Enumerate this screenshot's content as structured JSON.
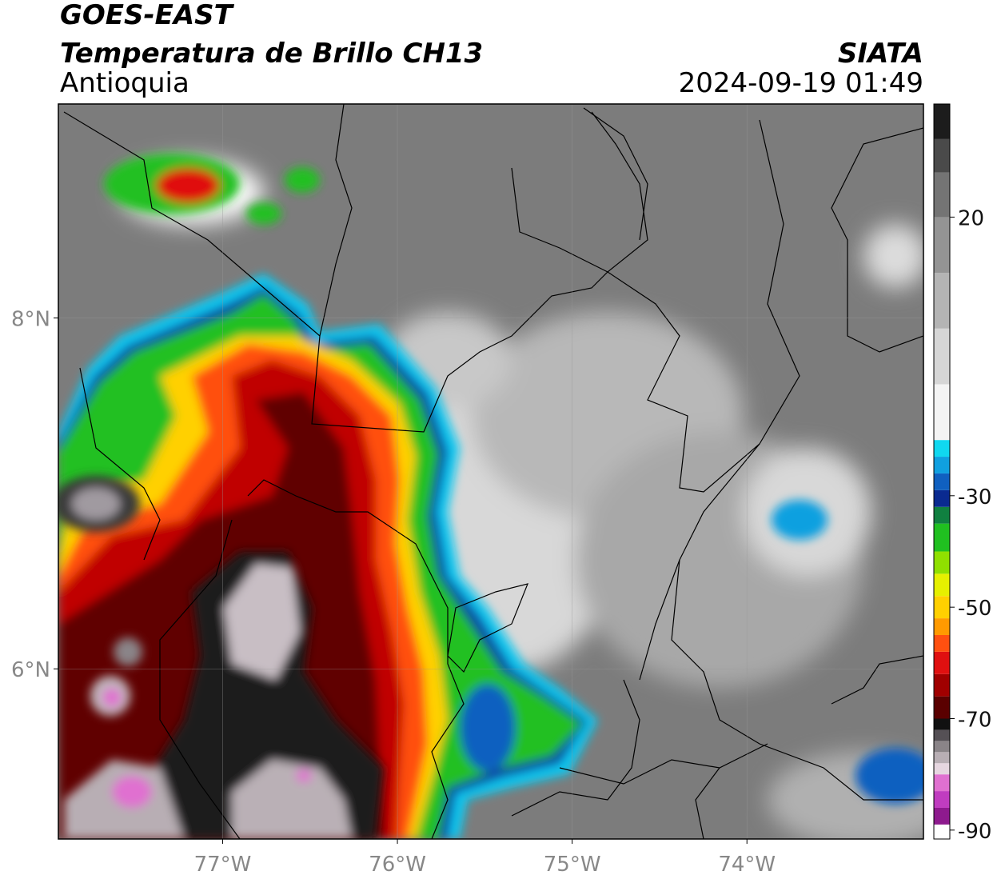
{
  "title": "GOES-EAST",
  "subtitle": "Temperatura de Brillo CH13",
  "region": "Antioquia",
  "source": "SIATA",
  "timestamp": "2024-09-19 01:49",
  "map": {
    "xlim": [
      -77.94,
      -72.99
    ],
    "ylim": [
      5.03,
      9.22
    ],
    "xticks": [
      {
        "value": -77,
        "label": "77°W"
      },
      {
        "value": -76,
        "label": "76°W"
      },
      {
        "value": -75,
        "label": "75°W"
      },
      {
        "value": -74,
        "label": "74°W"
      }
    ],
    "yticks": [
      {
        "value": 8,
        "label": "8°N"
      },
      {
        "value": 6,
        "label": "6°N"
      }
    ],
    "grid": true
  },
  "colorbar": {
    "clim": [
      -91.6,
      40.3
    ],
    "ticks": [
      20,
      -30,
      -50,
      -70,
      -90
    ],
    "bands": [
      {
        "value": -91.6,
        "color": "#ffffff"
      },
      {
        "value": -89,
        "color": "#8e1a8e"
      },
      {
        "value": -86,
        "color": "#c03cc0"
      },
      {
        "value": -83,
        "color": "#e070d0"
      },
      {
        "value": -80,
        "color": "#e6d6e0"
      },
      {
        "value": -78,
        "color": "#b8aeb4"
      },
      {
        "value": -76,
        "color": "#8a8488"
      },
      {
        "value": -74,
        "color": "#555055"
      },
      {
        "value": -72,
        "color": "#111111"
      },
      {
        "value": -70,
        "color": "#5a0000"
      },
      {
        "value": -66,
        "color": "#a00000"
      },
      {
        "value": -62,
        "color": "#e01010"
      },
      {
        "value": -58,
        "color": "#ff5010"
      },
      {
        "value": -55,
        "color": "#ff9a00"
      },
      {
        "value": -52,
        "color": "#ffd000"
      },
      {
        "value": -48,
        "color": "#e6f000"
      },
      {
        "value": -44,
        "color": "#90e000"
      },
      {
        "value": -40,
        "color": "#20c020"
      },
      {
        "value": -35,
        "color": "#108040"
      },
      {
        "value": -32,
        "color": "#0a2a90"
      },
      {
        "value": -29,
        "color": "#1060c0"
      },
      {
        "value": -26,
        "color": "#10a0e0"
      },
      {
        "value": -23,
        "color": "#10d8f0"
      },
      {
        "value": -20,
        "color": "#f4f4f4"
      },
      {
        "value": -10,
        "color": "#d6d6d6"
      },
      {
        "value": 0,
        "color": "#b4b4b4"
      },
      {
        "value": 10,
        "color": "#949494"
      },
      {
        "value": 20,
        "color": "#747474"
      },
      {
        "value": 28,
        "color": "#4a4a4a"
      },
      {
        "value": 34,
        "color": "#1c1c1c"
      }
    ]
  }
}
